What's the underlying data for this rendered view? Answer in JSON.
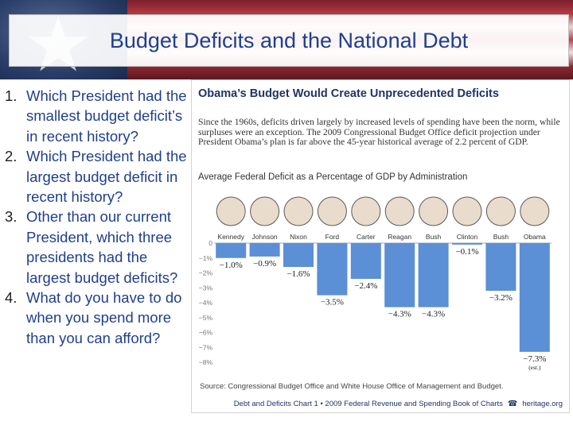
{
  "slide_title": "Budget Deficits and the National Debt",
  "questions": [
    {
      "num": "1.",
      "text": "Which President had the smallest budget deficit’s in recent history?"
    },
    {
      "num": "2.",
      "text": "Which President had the largest budget deficit in recent history?"
    },
    {
      "num": "3.",
      "text": "Other than our current President, which three presidents had the largest budget deficits?"
    },
    {
      "num": "4.",
      "text": "What do you have to do when you spend more than you can afford?"
    }
  ],
  "chart_data": {
    "type": "bar",
    "title": "Obama’s Budget Would Create Unprecedented Deficits",
    "description": "Since the 1960s, deficits driven largely by increased levels of spending have been the norm, while surpluses were an exception. The 2009 Congressional Budget Office deficit projection under President Obama’s plan is far above the 45-year historical average of 2.2 percent of GDP.",
    "subtitle": "Average Federal Deficit as a Percentage of GDP by Administration",
    "categories": [
      "Kennedy",
      "Johnson",
      "Nixon",
      "Ford",
      "Carter",
      "Reagan",
      "Bush",
      "Clinton",
      "Bush",
      "Obama"
    ],
    "values": [
      -1.0,
      -0.9,
      -1.6,
      -3.5,
      -2.4,
      -4.3,
      -4.3,
      -0.1,
      -3.2,
      -7.3
    ],
    "value_labels": [
      "−1.0%",
      "−0.9%",
      "−1.6%",
      "−3.5%",
      "−2.4%",
      "−4.3%",
      "−4.3%",
      "−0.1%",
      "−3.2%",
      "−7.3%"
    ],
    "value_notes": [
      "",
      "",
      "",
      "",
      "",
      "",
      "",
      "",
      "",
      "(est.)"
    ],
    "y_ticks": [
      0,
      -1,
      -2,
      -3,
      -4,
      -5,
      -6,
      -7,
      -8
    ],
    "y_tick_labels": [
      "0",
      "−1%",
      "−2%",
      "−3%",
      "−4%",
      "−5%",
      "−6%",
      "−7%",
      "−8%"
    ],
    "ylim": [
      -8,
      0
    ],
    "xlabel": "",
    "ylabel": "",
    "grid": false,
    "bar_color": "#5b8fd6",
    "source": "Source: Congressional Budget Office and White House Office of Management and Budget.",
    "footer": "Debt and Deficits Chart 1 • 2009 Federal Revenue and Spending Book of Charts",
    "footer_brand": "heritage.org"
  }
}
